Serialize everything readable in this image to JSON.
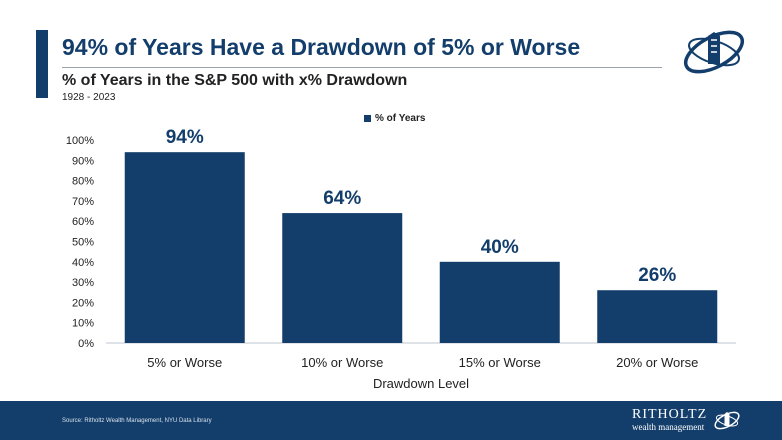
{
  "header": {
    "title": "94% of Years Have a Drawdown of 5% or Worse",
    "subtitle": "% of Years in the S&P 500 with x% Drawdown",
    "years": "1928 - 2023"
  },
  "chart_data": {
    "type": "bar",
    "categories": [
      "5% or Worse",
      "10% or Worse",
      "15% or Worse",
      "20% or Worse"
    ],
    "series": [
      {
        "name": "% of Years",
        "values": [
          94,
          64,
          40,
          26
        ]
      }
    ],
    "data_labels": [
      "94%",
      "64%",
      "40%",
      "26%"
    ],
    "xlabel": "Drawdown Level",
    "ylabel": "",
    "ylim": [
      0,
      100
    ],
    "yticks": [
      "0%",
      "10%",
      "20%",
      "30%",
      "40%",
      "50%",
      "60%",
      "70%",
      "80%",
      "90%",
      "100%"
    ],
    "grid": false,
    "legend": "top-center",
    "bar_color": "#133e6b"
  },
  "footer": {
    "source": "Source: Ritholtz Wealth Management, NYU Data Library",
    "brand_top": "RITHOLTZ",
    "brand_bottom": "wealth management"
  },
  "colors": {
    "accent": "#133e6b",
    "footer_bg": "#133e6b"
  }
}
